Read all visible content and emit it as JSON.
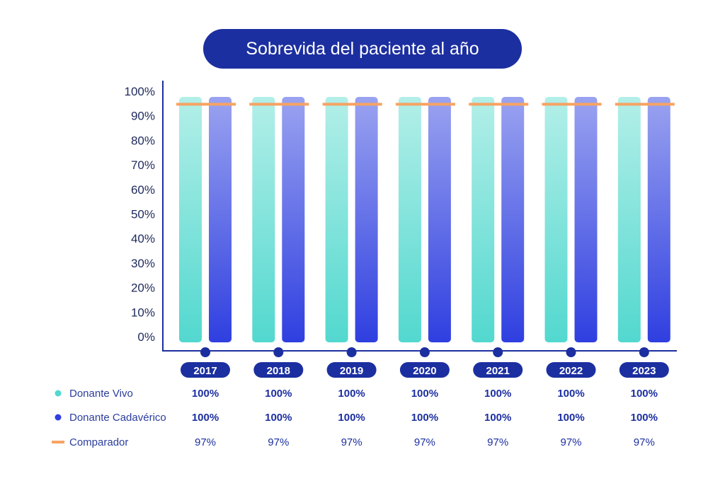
{
  "title": "Sobrevida del paciente al año",
  "colors": {
    "vivo_top": "#b3efe8",
    "vivo_bottom": "#52d8cf",
    "cadaverico_top": "#9aa3f0",
    "cadaverico_bottom": "#2f3fe0",
    "comparador": "#f7a363",
    "axis": "#1c2fa0",
    "pill": "#1c2fa0"
  },
  "chart_data": {
    "type": "bar",
    "categories": [
      "2017",
      "2018",
      "2019",
      "2020",
      "2021",
      "2022",
      "2023"
    ],
    "series": [
      {
        "name": "Donante Vivo",
        "values": [
          100,
          100,
          100,
          100,
          100,
          100,
          100
        ]
      },
      {
        "name": "Donante Cadavérico",
        "values": [
          100,
          100,
          100,
          100,
          100,
          100,
          100
        ]
      },
      {
        "name": "Comparador",
        "type": "line",
        "values": [
          97,
          97,
          97,
          97,
          97,
          97,
          97
        ]
      }
    ],
    "yticks": [
      "0%",
      "10%",
      "20%",
      "30%",
      "40%",
      "50%",
      "60%",
      "70%",
      "80%",
      "90%",
      "100%"
    ],
    "ylim": [
      0,
      100
    ],
    "grid": false,
    "legend": "bottom-left table"
  },
  "table": {
    "rows": [
      {
        "label": "Donante Vivo",
        "values": [
          "100%",
          "100%",
          "100%",
          "100%",
          "100%",
          "100%",
          "100%"
        ]
      },
      {
        "label": "Donante Cadavérico",
        "values": [
          "100%",
          "100%",
          "100%",
          "100%",
          "100%",
          "100%",
          "100%"
        ]
      },
      {
        "label": "Comparador",
        "values": [
          "97%",
          "97%",
          "97%",
          "97%",
          "97%",
          "97%",
          "97%"
        ]
      }
    ]
  }
}
